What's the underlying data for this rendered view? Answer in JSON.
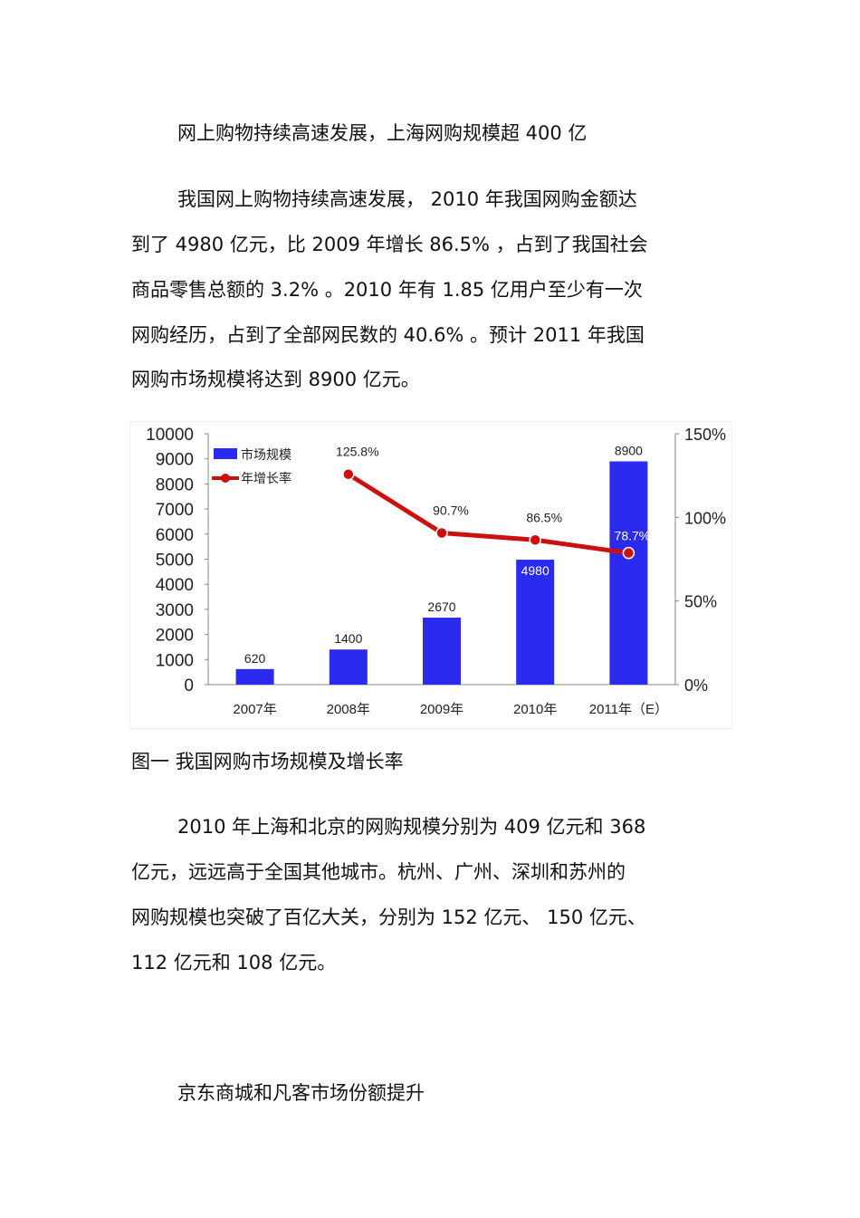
{
  "doc": {
    "heading1": "网上购物持续高速发展，上海网购规模超 400 亿",
    "para1": [
      "我国网上购物持续高速发展， 2010 年我国网购金额达",
      "到了 4980 亿元，比 2009 年增长 86.5% ，占到了我国社会",
      "商品零售总额的 3.2% 。2010 年有 1.85 亿用户至少有一次",
      "网购经历，占到了全部网民数的 40.6% 。预计 2011 年我国",
      "网购市场规模将达到 8900 亿元。"
    ],
    "figure_caption": "图一 我国网购市场规模及增长率",
    "para2": [
      "2010 年上海和北京的网购规模分别为 409 亿元和 368",
      "亿元，远远高于全国其他城市。杭州、广州、深圳和苏州的",
      "网购规模也突破了百亿大关，分别为 152 亿元、 150 亿元、",
      "112 亿元和 108 亿元。"
    ],
    "heading2": "京东商城和凡客市场份额提升"
  },
  "chart_data": {
    "type": "bar",
    "categories": [
      "2007年",
      "2008年",
      "2009年",
      "2010年",
      "2011年（E）"
    ],
    "series": [
      {
        "name": "市场规模",
        "type": "bar",
        "axis": "left",
        "values": [
          620,
          1400,
          2670,
          4980,
          8900
        ],
        "labels": [
          "620",
          "1400",
          "2670",
          "4980",
          "8900"
        ],
        "color": "#2b2bf0"
      },
      {
        "name": "年增长率",
        "type": "line",
        "axis": "right",
        "values": [
          null,
          125.8,
          90.7,
          86.5,
          78.7
        ],
        "labels": [
          "",
          "125.8%",
          "90.7%",
          "86.5%",
          "78.7%"
        ],
        "color": "#cc1010"
      }
    ],
    "y_left": {
      "min": 0,
      "max": 10000,
      "ticks": [
        "0",
        "1000",
        "2000",
        "3000",
        "4000",
        "5000",
        "6000",
        "7000",
        "8000",
        "9000",
        "10000"
      ]
    },
    "y_right": {
      "min": 0,
      "max": 150,
      "ticks": [
        "0%",
        "50%",
        "100%",
        "150%"
      ]
    },
    "legend_placement": "top-left",
    "grid": false
  }
}
